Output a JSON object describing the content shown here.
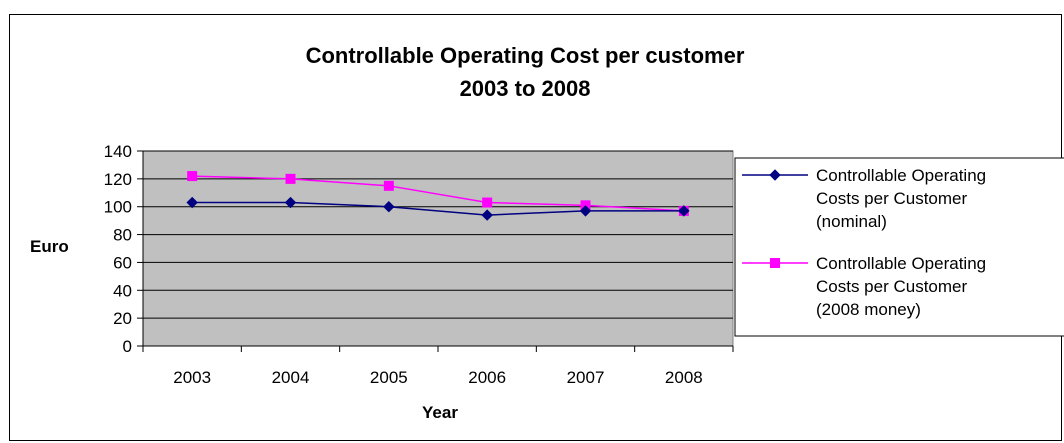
{
  "chart_data": {
    "type": "line",
    "title": [
      "Controllable Operating Cost per customer",
      "2003 to 2008"
    ],
    "xlabel": "Year",
    "ylabel": "Euro",
    "categories": [
      "2003",
      "2004",
      "2005",
      "2006",
      "2007",
      "2008"
    ],
    "ylim": [
      0,
      140
    ],
    "yticks": [
      0,
      20,
      40,
      60,
      80,
      100,
      120,
      140
    ],
    "grid": true,
    "plot_background": "#c0c0c0",
    "legend_position": "right",
    "series": [
      {
        "name": [
          "Controllable Operating",
          "Costs per Customer",
          "(nominal)"
        ],
        "color": "#000080",
        "marker": "diamond",
        "values": [
          103,
          103,
          100,
          94,
          97,
          97
        ]
      },
      {
        "name": [
          "Controllable Operating",
          "Costs per Customer",
          "(2008 money)"
        ],
        "color": "#ff00ff",
        "marker": "square",
        "values": [
          122,
          120,
          115,
          103,
          101,
          97
        ]
      }
    ]
  }
}
